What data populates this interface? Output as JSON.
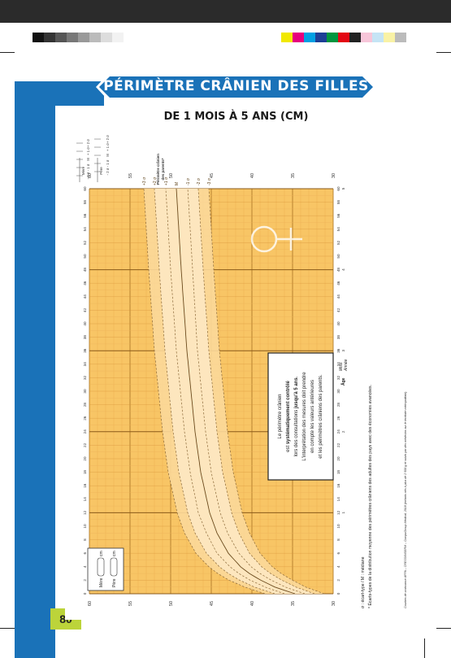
{
  "page": {
    "title": "PÉRIMÈTRE CRÂNIEN DES FILLES",
    "subtitle": "DE 1 MOIS À 5 ANS (CM)",
    "page_number": "80"
  },
  "colors": {
    "grid_bg": "#f8c565",
    "band": "#fde7c0",
    "accent_blue": "#1a72b8",
    "page_tag": "#bcd43a"
  },
  "chart_data": {
    "type": "line",
    "x_unit_top": "Mois",
    "x_unit_bottom": "Année",
    "xlabel": "Âge",
    "ylabel": "cm",
    "ylim": [
      30,
      60
    ],
    "xlim": [
      0,
      60
    ],
    "y_ticks": [
      "60",
      "55",
      "50",
      "45",
      "40",
      "35",
      "30"
    ],
    "x_ticks": [
      "0",
      "2",
      "4",
      "6",
      "8",
      "10",
      "12",
      "14",
      "16",
      "18",
      "20",
      "22",
      "24",
      "26",
      "28",
      "30",
      "32",
      "34",
      "36",
      "38",
      "40",
      "42",
      "44",
      "46",
      "48",
      "50",
      "52",
      "54",
      "56",
      "58",
      "60"
    ],
    "year_ticks": [
      "1",
      "2",
      "3",
      "4",
      "5"
    ],
    "series": [
      {
        "name": "+3 σ",
        "x": [
          0,
          1,
          2,
          3,
          4,
          6,
          9,
          12,
          18,
          24,
          36,
          48,
          60
        ],
        "y": [
          38.4,
          40.9,
          42.8,
          44.2,
          45.3,
          46.9,
          48.3,
          49.2,
          50.3,
          51.0,
          52.0,
          52.7,
          53.3
        ]
      },
      {
        "name": "+2 σ",
        "x": [
          0,
          1,
          2,
          3,
          4,
          6,
          9,
          12,
          18,
          24,
          36,
          48,
          60
        ],
        "y": [
          37.2,
          39.7,
          41.5,
          42.9,
          44.0,
          45.6,
          47.0,
          47.9,
          49.0,
          49.7,
          50.7,
          51.4,
          52.0
        ]
      },
      {
        "name": "+1 σ",
        "x": [
          0,
          1,
          2,
          3,
          4,
          6,
          9,
          12,
          18,
          24,
          36,
          48,
          60
        ],
        "y": [
          36.0,
          38.4,
          40.2,
          41.6,
          42.7,
          44.3,
          45.6,
          46.6,
          47.6,
          48.3,
          49.3,
          50.0,
          50.6
        ]
      },
      {
        "name": "M",
        "x": [
          0,
          1,
          2,
          3,
          4,
          6,
          9,
          12,
          18,
          24,
          36,
          48,
          60
        ],
        "y": [
          34.7,
          37.2,
          38.9,
          40.3,
          41.4,
          42.9,
          44.3,
          45.2,
          46.3,
          47.0,
          48.0,
          48.7,
          49.3
        ]
      },
      {
        "name": "-1 σ",
        "x": [
          0,
          1,
          2,
          3,
          4,
          6,
          9,
          12,
          18,
          24,
          36,
          48,
          60
        ],
        "y": [
          33.5,
          35.9,
          37.6,
          39.0,
          40.1,
          41.6,
          43.0,
          43.9,
          45.0,
          45.7,
          46.7,
          47.3,
          47.9
        ]
      },
      {
        "name": "-2 σ",
        "x": [
          0,
          1,
          2,
          3,
          4,
          6,
          9,
          12,
          18,
          24,
          36,
          48,
          60
        ],
        "y": [
          32.3,
          34.6,
          36.3,
          37.7,
          38.8,
          40.3,
          41.6,
          42.5,
          43.6,
          44.3,
          45.3,
          46.0,
          46.6
        ]
      },
      {
        "name": "-3 σ",
        "x": [
          0,
          1,
          2,
          3,
          4,
          6,
          9,
          12,
          18,
          24,
          36,
          48,
          60
        ],
        "y": [
          31.1,
          33.4,
          35.0,
          36.4,
          37.5,
          39.0,
          40.3,
          41.2,
          42.3,
          43.0,
          44.0,
          44.7,
          45.3
        ]
      }
    ],
    "right_labels": [
      "+3 σ",
      "+2 σ",
      "+1 σ",
      "M",
      "-1 σ",
      "-2 σ",
      "-3 σ"
    ]
  },
  "info_box": {
    "line1": "Le périmètre crânien",
    "line2a": "est ",
    "line2b": "systématiquement contrôlé",
    "line3a": "lors des consultations ",
    "line3b": "jusqu'à 5 ans",
    "line3c": ".",
    "line4": "L'interprétation des mesures doit prendre",
    "line5": "en compte les valeurs antérieures",
    "line6": "et les périmètres crâniens des parents."
  },
  "parents_box": {
    "mere": "Mère",
    "pere": "Père",
    "unit": "cm"
  },
  "parents_scale": {
    "mere_label": "Mère",
    "pere_label": "Père",
    "title1": "Périmètre crânien",
    "title2": "des parents*",
    "left_marks": [
      "+ 2 σ",
      "+ 1 σ",
      "M",
      "- 1 σ",
      "- 2 σ"
    ],
    "right_marks": [
      "+ 2 σ",
      "+ 1 σ",
      "M",
      "- 1 σ",
      "- 2 σ"
    ]
  },
  "footnotes": {
    "legend": "σ : écart-type / M : médiane",
    "parents_note": "* Écarts-types de la distribution moyenne des périmètres crâniens des adultes des pays avec des économies avancées.",
    "source": "Courbes de croissance AFPA – CRESS/INSERM – CompuGroup Medical, 2018 (enfants nés à plus de 2 500 g et suivis par des médecins sur le territoire métropolitain)."
  }
}
